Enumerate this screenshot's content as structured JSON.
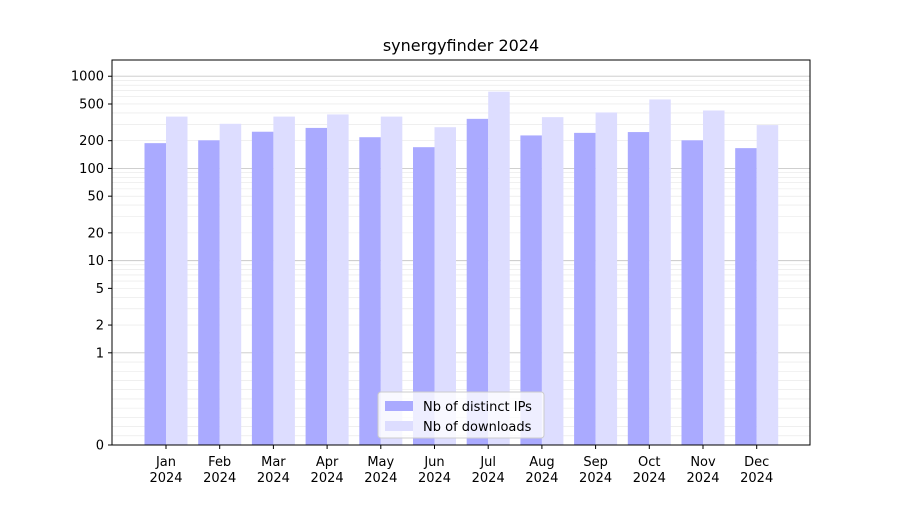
{
  "chart_data": {
    "type": "bar",
    "title": "synergyfinder 2024",
    "xlabel": "",
    "ylabel": "",
    "yscale": "symlog",
    "ylim": [
      0,
      1500
    ],
    "grid": true,
    "legend_position": "bottom-center",
    "categories": [
      "Jan\n2024",
      "Feb\n2024",
      "Mar\n2024",
      "Apr\n2024",
      "May\n2024",
      "Jun\n2024",
      "Jul\n2024",
      "Aug\n2024",
      "Sep\n2024",
      "Oct\n2024",
      "Nov\n2024",
      "Dec\n2024"
    ],
    "y_ticks": [
      0,
      1,
      2,
      5,
      10,
      20,
      50,
      100,
      200,
      500,
      1000
    ],
    "series": [
      {
        "name": "Nb of distinct IPs",
        "color": "#aaaaff",
        "values": [
          188,
          202,
          250,
          275,
          218,
          170,
          345,
          228,
          243,
          248,
          202,
          166
        ]
      },
      {
        "name": "Nb of downloads",
        "color": "#ddddff",
        "values": [
          365,
          305,
          365,
          385,
          365,
          280,
          680,
          360,
          405,
          560,
          425,
          295
        ]
      }
    ]
  }
}
